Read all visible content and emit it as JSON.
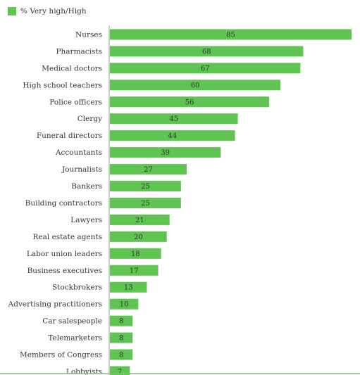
{
  "colors": {
    "bar": "#5fc452",
    "axis": "#999999",
    "baseline": "#7dc474",
    "text": "#333333"
  },
  "chart_data": {
    "type": "bar",
    "orientation": "horizontal",
    "legend": {
      "position": "top-left",
      "entries": [
        "% Very high/High"
      ]
    },
    "categories": [
      "Nurses",
      "Pharmacists",
      "Medical doctors",
      "High school teachers",
      "Police officers",
      "Clergy",
      "Funeral directors",
      "Accountants",
      "Journalists",
      "Bankers",
      "Building contractors",
      "Lawyers",
      "Real estate agents",
      "Labor union leaders",
      "Business executives",
      "Stockbrokers",
      "Advertising practitioners",
      "Car salespeople",
      "Telemarketers",
      "Members of Congress",
      "Lobbyists"
    ],
    "series": [
      {
        "name": "% Very high/High",
        "values": [
          85,
          68,
          67,
          60,
          56,
          45,
          44,
          39,
          27,
          25,
          25,
          21,
          20,
          18,
          17,
          13,
          10,
          8,
          8,
          8,
          7
        ]
      }
    ],
    "xlim": [
      0,
      85
    ],
    "grid": false
  }
}
